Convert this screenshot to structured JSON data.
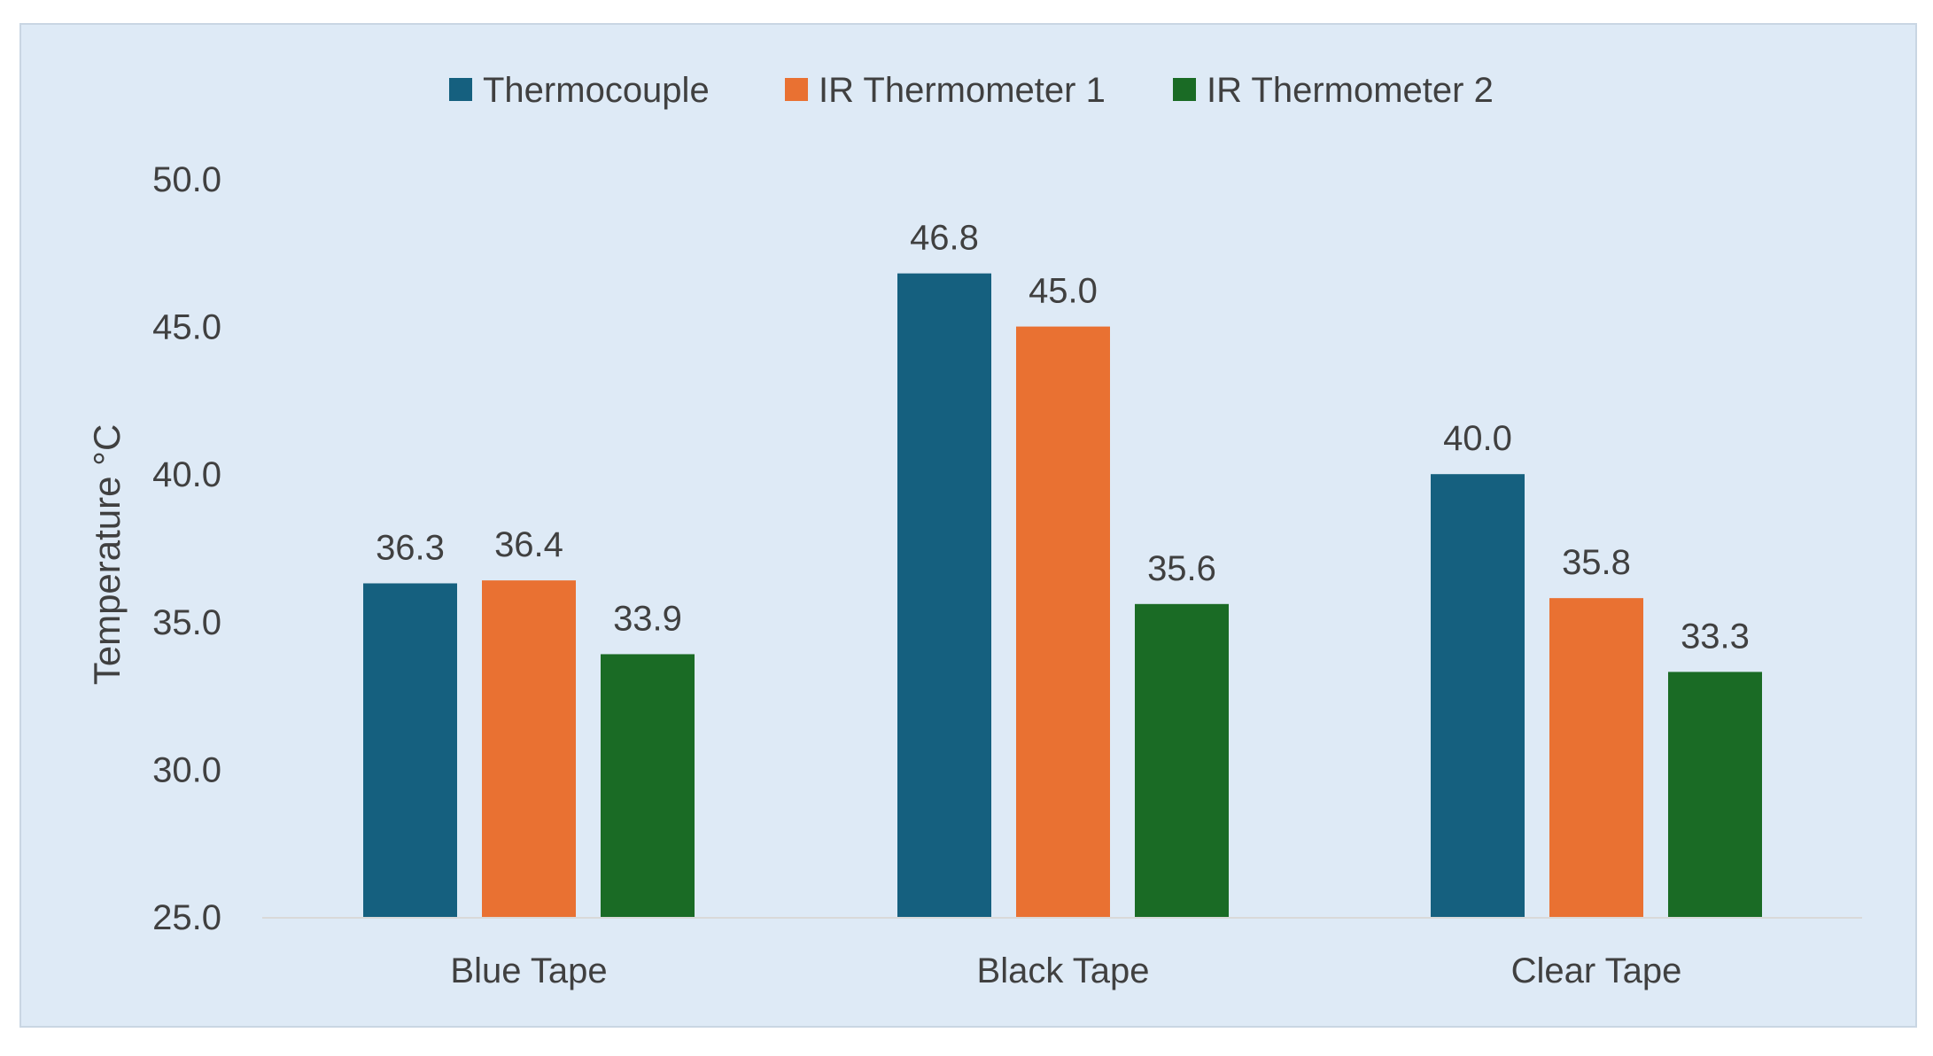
{
  "chart_data": {
    "type": "bar",
    "categories": [
      "Blue Tape",
      "Black Tape",
      "Clear Tape"
    ],
    "series": [
      {
        "name": "Thermocouple",
        "color": "#15607f",
        "values": [
          36.3,
          46.8,
          40.0
        ],
        "labels": [
          "36.3",
          "46.8",
          "40.0"
        ]
      },
      {
        "name": "IR Thermometer 1",
        "color": "#e97132",
        "values": [
          36.4,
          45.0,
          35.8
        ],
        "labels": [
          "36.4",
          "45.0",
          "35.8"
        ]
      },
      {
        "name": "IR Thermometer 2",
        "color": "#1a6b25",
        "values": [
          33.9,
          35.6,
          33.3
        ],
        "labels": [
          "33.9",
          "35.6",
          "33.3"
        ]
      }
    ],
    "title": "",
    "xlabel": "",
    "ylabel": "Temperature °C",
    "ylim": [
      25.0,
      50.0
    ],
    "yticks": [
      25.0,
      30.0,
      35.0,
      40.0,
      45.0,
      50.0
    ],
    "ytick_labels": [
      "25.0",
      "30.0",
      "35.0",
      "40.0",
      "45.0",
      "50.0"
    ],
    "grid": false,
    "legend_position": "top-center",
    "background_color": "#deeaf6",
    "border_color": "#c9d6e3",
    "axis_line_color": "#d9d9d9"
  }
}
